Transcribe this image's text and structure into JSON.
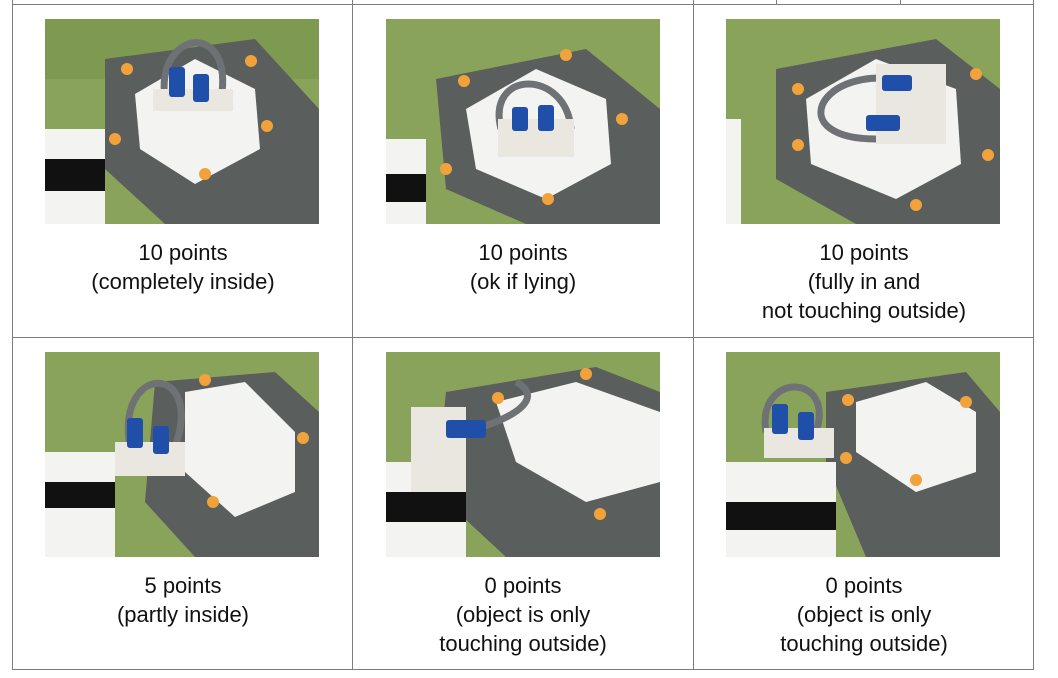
{
  "cells": [
    {
      "score": "10 points",
      "lines": [
        "(completely inside)"
      ]
    },
    {
      "score": "10 points",
      "lines": [
        "(ok if lying)"
      ]
    },
    {
      "score": "10 points",
      "lines": [
        "(fully in and",
        "not touching outside)"
      ]
    },
    {
      "score": "5 points",
      "lines": [
        "(partly inside)"
      ]
    },
    {
      "score": "0 points",
      "lines": [
        "(object is only",
        "touching outside)"
      ]
    },
    {
      "score": "0 points",
      "lines": [
        "(object is only",
        "touching outside)"
      ]
    }
  ],
  "colors": {
    "mat_green": "#8aa35a",
    "road_gray": "#5a5e5c",
    "hexagon_white": "#f3f3f1",
    "light_orange": "#f2a23a",
    "lego_blue": "#1f4fa8",
    "hose_gray": "#6e7275",
    "brick_white": "#e9e7e0",
    "border_gray": "#7d7d7d"
  }
}
